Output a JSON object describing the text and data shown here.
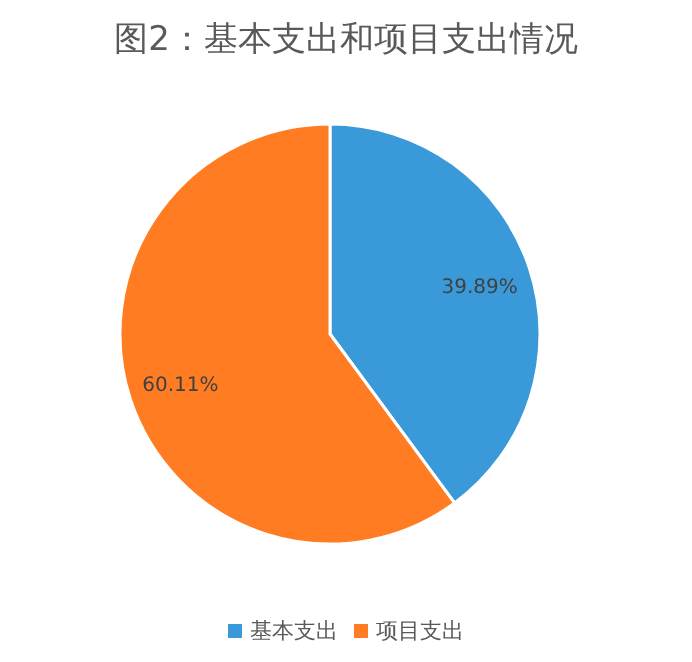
{
  "chart_data": {
    "type": "pie",
    "title": "图2：基本支出和项目支出情况",
    "categories": [
      "基本支出",
      "项目支出"
    ],
    "values": [
      39.89,
      60.11
    ],
    "colors": [
      "#3a9ad9",
      "#ff7c22"
    ],
    "value_labels": [
      "39.89%",
      "60.11%"
    ],
    "legend": "bottom"
  }
}
